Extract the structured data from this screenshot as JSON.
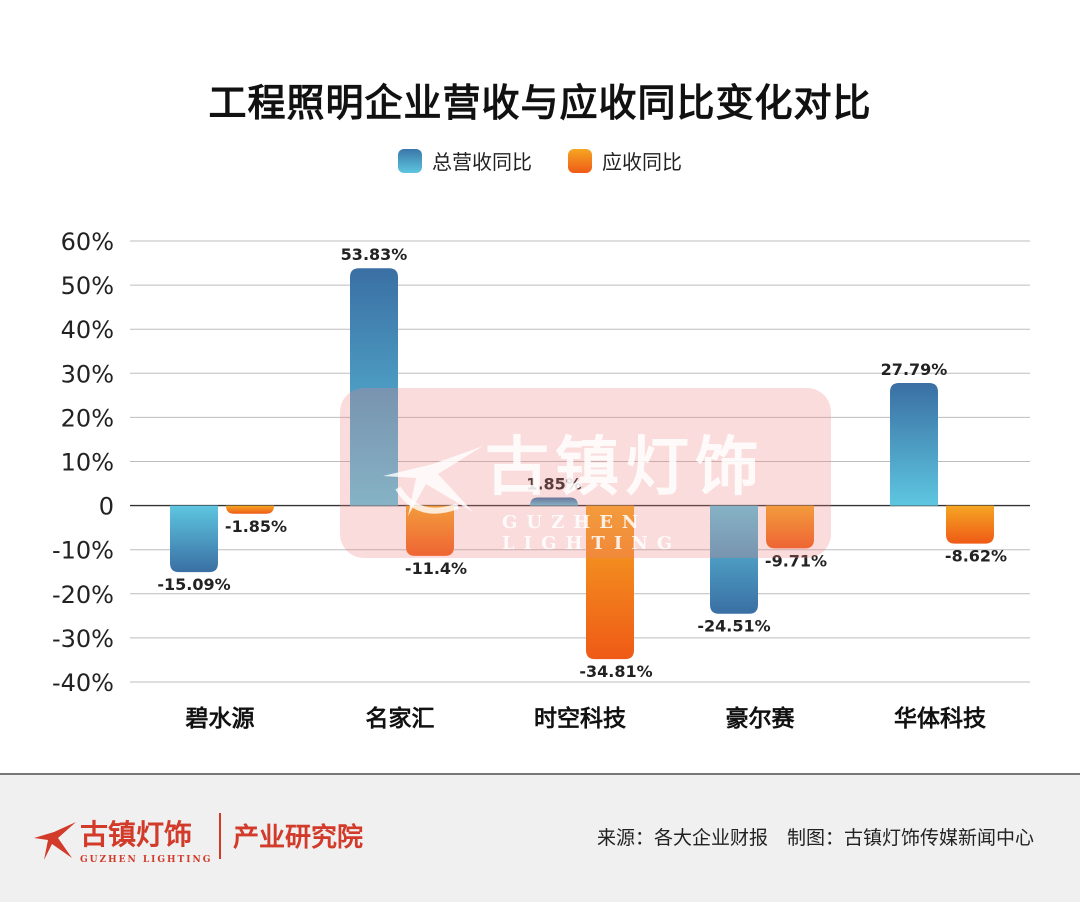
{
  "title": "工程照明企业营收与应收同比变化对比",
  "legend": {
    "revenue": "总营收同比",
    "receivable": "应收同比"
  },
  "colors": {
    "revenue_top": "#3a77a8",
    "revenue_bottom": "#5ec6e0",
    "receivable_top": "#f5a623",
    "receivable_bottom": "#ef5a16",
    "brand_red": "#d23a2a"
  },
  "chart_data": {
    "type": "bar",
    "categories": [
      "碧水源",
      "名家汇",
      "时空科技",
      "豪尔赛",
      "华体科技"
    ],
    "series": [
      {
        "name": "总营收同比",
        "values": [
          -15.09,
          53.83,
          1.85,
          -24.51,
          27.79
        ],
        "labels": [
          "-15.09%",
          "53.83%",
          "1.85%",
          "-24.51%",
          "27.79%"
        ]
      },
      {
        "name": "应收同比",
        "values": [
          -1.85,
          -11.4,
          -34.81,
          -9.71,
          -8.62
        ],
        "labels": [
          "-1.85%",
          "-11.4%",
          "-34.81%",
          "-9.71%",
          "-8.62%"
        ]
      }
    ],
    "ylim": [
      -40,
      60
    ],
    "yticks": [
      60,
      50,
      40,
      30,
      20,
      10,
      0,
      -10,
      -20,
      -30,
      -40
    ],
    "ytick_labels": [
      "60%",
      "50%",
      "40%",
      "30%",
      "20%",
      "10%",
      "0",
      "-10%",
      "-20%",
      "-30%",
      "-40%"
    ],
    "grid": true,
    "legend_position": "top-center"
  },
  "watermark": {
    "text": "古镇灯饰",
    "subtext": "GUZHEN LIGHTING",
    "logo_icon": "swoosh-star-icon"
  },
  "footer": {
    "logo_text": "古镇灯饰",
    "logo_subtext": "GUZHEN LIGHTING",
    "institute": "产业研究院",
    "source": "来源：各大企业财报　制图：古镇灯饰传媒新闻中心"
  }
}
